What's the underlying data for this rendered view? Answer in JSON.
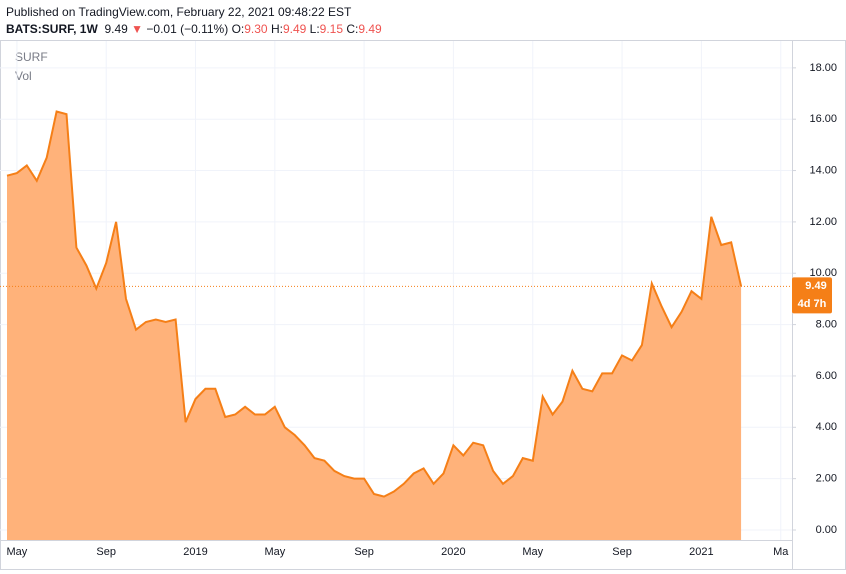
{
  "header": {
    "published": "Published on TradingView.com, February 22, 2021 09:48:22 EST",
    "symbol": "BATS:SURF, 1W",
    "price": "9.49",
    "arrow": "▼",
    "change": "−0.01 (−0.11%)",
    "o_label": "O:",
    "o": "9.30",
    "h_label": "H:",
    "h": "9.49",
    "l_label": "L:",
    "l": "9.15",
    "c_label": "C:",
    "c": "9.49"
  },
  "chart_data": {
    "type": "area",
    "legend": [
      "SURF",
      "Vol"
    ],
    "countdown": "4d 7h",
    "color": "#f57f17",
    "fill": "#ffb27a",
    "grid": true,
    "categories": [
      null,
      "May",
      null,
      null,
      null,
      null,
      null,
      null,
      null,
      null,
      "Sep",
      null,
      null,
      null,
      null,
      null,
      null,
      null,
      null,
      "2019",
      null,
      null,
      null,
      null,
      null,
      null,
      null,
      "May",
      null,
      null,
      null,
      null,
      null,
      null,
      null,
      null,
      "Sep",
      null,
      null,
      null,
      null,
      null,
      null,
      null,
      null,
      "2020",
      null,
      null,
      null,
      null,
      null,
      null,
      null,
      "May",
      null,
      null,
      null,
      null,
      null,
      null,
      null,
      null,
      "Sep",
      null,
      null,
      null,
      null,
      null,
      null,
      null,
      "2021",
      null,
      null,
      null,
      null,
      null,
      null,
      null,
      "Ma"
    ],
    "values": [
      13.8,
      13.9,
      14.2,
      13.6,
      14.5,
      16.3,
      16.2,
      11.0,
      10.3,
      9.4,
      10.4,
      12.0,
      9.0,
      7.8,
      8.1,
      8.2,
      8.1,
      8.2,
      4.2,
      5.1,
      5.5,
      5.5,
      4.4,
      4.5,
      4.8,
      4.5,
      4.5,
      4.8,
      4.0,
      3.7,
      3.3,
      2.8,
      2.7,
      2.3,
      2.1,
      2.0,
      2.0,
      1.4,
      1.3,
      1.5,
      1.8,
      2.2,
      2.4,
      1.8,
      2.2,
      3.3,
      2.9,
      3.4,
      3.3,
      2.3,
      1.8,
      2.1,
      2.8,
      2.7,
      5.2,
      4.5,
      5.0,
      6.2,
      5.5,
      5.4,
      6.1,
      6.1,
      6.8,
      6.6,
      7.2,
      9.6,
      8.7,
      7.9,
      8.5,
      9.3,
      9.0,
      12.2,
      11.1,
      11.2,
      9.49,
      null,
      null,
      null,
      null
    ],
    "ylim": [
      -0.39,
      18.89
    ],
    "yticks": [
      {
        "value": 0,
        "label": "0.00"
      },
      {
        "value": 2,
        "label": "2.00"
      },
      {
        "value": 4,
        "label": "4.00"
      },
      {
        "value": 6,
        "label": "6.00"
      },
      {
        "value": 8,
        "label": "8.00"
      },
      {
        "value": 10,
        "label": "10.00"
      },
      {
        "value": 12,
        "label": "12.00"
      },
      {
        "value": 14,
        "label": "14.00"
      },
      {
        "value": 16,
        "label": "16.00"
      },
      {
        "value": 18,
        "label": "18.00"
      }
    ]
  }
}
